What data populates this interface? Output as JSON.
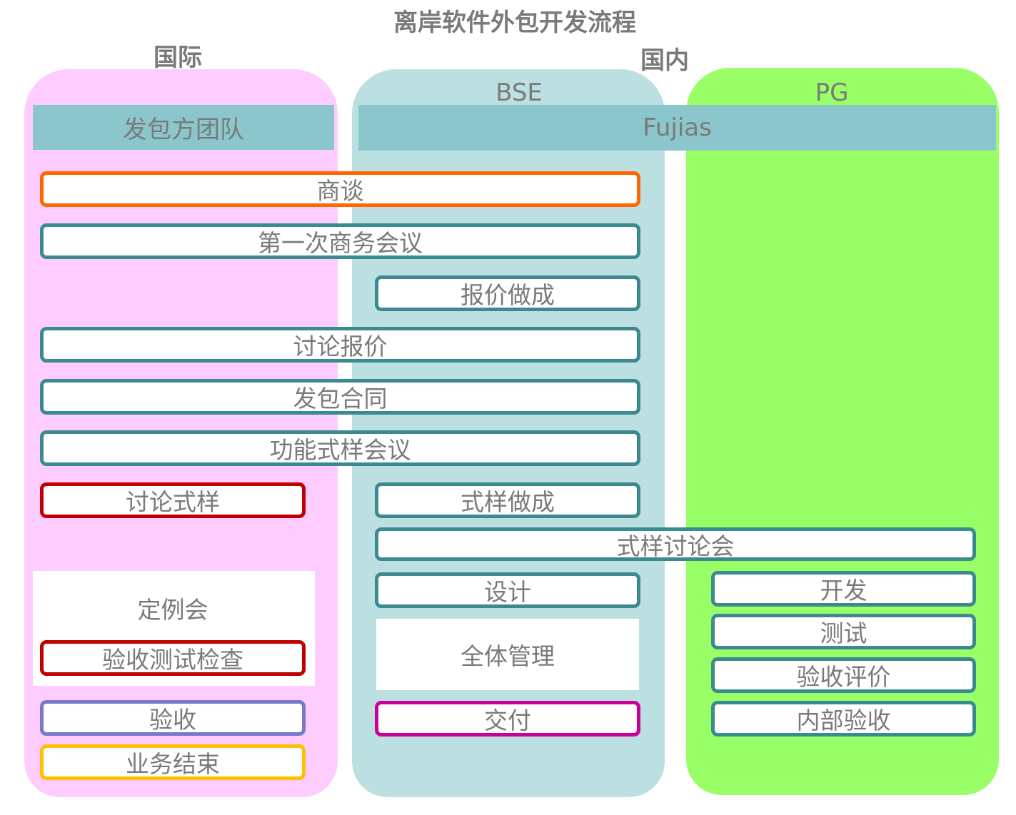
{
  "title": "离岸软件外包开发流程",
  "regions": {
    "international": "国际",
    "domestic": "国内"
  },
  "lanes": {
    "client": {
      "header": "发包方团队",
      "color": "#FFCCFF"
    },
    "bse": {
      "label": "BSE",
      "color": "#BCE0E2"
    },
    "pg": {
      "label": "PG",
      "color": "#99FF66"
    },
    "fujias": {
      "header": "Fujias",
      "color": "#8AC6CC"
    }
  },
  "steps": {
    "negotiation": {
      "label": "商谈",
      "color": "#FF6600"
    },
    "first_meeting": {
      "label": "第一次商务会议",
      "color": "#3A8A90"
    },
    "quote_make": {
      "label": "报价做成",
      "color": "#3A8A90"
    },
    "quote_discuss": {
      "label": "讨论报价",
      "color": "#3A8A90"
    },
    "contract": {
      "label": "发包合同",
      "color": "#3A8A90"
    },
    "spec_meeting": {
      "label": "功能式样会议",
      "color": "#3A8A90"
    },
    "spec_discuss": {
      "label": "讨论式样",
      "color": "#C00000"
    },
    "spec_make": {
      "label": "式样做成",
      "color": "#3A8A90"
    },
    "spec_review": {
      "label": "式样讨论会",
      "color": "#3A8A90"
    },
    "design": {
      "label": "设计",
      "color": "#3A8A90"
    },
    "develop": {
      "label": "开发",
      "color": "#3A8A90"
    },
    "test": {
      "label": "测试",
      "color": "#3A8A90"
    },
    "acceptance_eval": {
      "label": "验收评价",
      "color": "#3A8A90"
    },
    "internal_acceptance": {
      "label": "内部验收",
      "color": "#3A8A90"
    },
    "regular_meeting": {
      "label": "定例会"
    },
    "acceptance_test_check": {
      "label": "验收测试检查",
      "color": "#C00000"
    },
    "overall_management": {
      "label": "全体管理"
    },
    "acceptance": {
      "label": "验收",
      "color": "#7777CC"
    },
    "delivery": {
      "label": "交付",
      "color": "#CC0099"
    },
    "business_end": {
      "label": "业务结束",
      "color": "#FFC000"
    }
  }
}
